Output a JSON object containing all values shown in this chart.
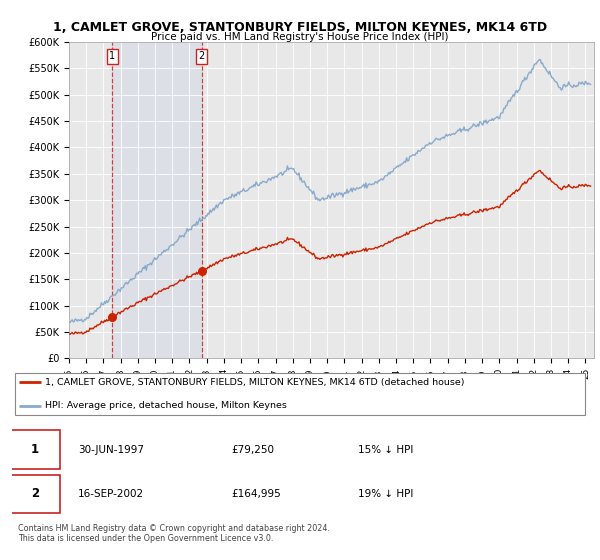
{
  "title_line1": "1, CAMLET GROVE, STANTONBURY FIELDS, MILTON KEYNES, MK14 6TD",
  "title_line2": "Price paid vs. HM Land Registry's House Price Index (HPI)",
  "ylabel_ticks": [
    "£0",
    "£50K",
    "£100K",
    "£150K",
    "£200K",
    "£250K",
    "£300K",
    "£350K",
    "£400K",
    "£450K",
    "£500K",
    "£550K",
    "£600K"
  ],
  "ytick_values": [
    0,
    50000,
    100000,
    150000,
    200000,
    250000,
    300000,
    350000,
    400000,
    450000,
    500000,
    550000,
    600000
  ],
  "sale1_date": 1997.5,
  "sale1_price": 79250,
  "sale1_label": "1",
  "sale2_date": 2002.71,
  "sale2_price": 164995,
  "sale2_label": "2",
  "hpi_line_color": "#88aacc",
  "price_line_color": "#cc2200",
  "sale_dot_color": "#cc2200",
  "plot_bg_color": "#e8e8e8",
  "grid_color": "#ffffff",
  "legend_label1": "1, CAMLET GROVE, STANTONBURY FIELDS, MILTON KEYNES, MK14 6TD (detached house)",
  "legend_label2": "HPI: Average price, detached house, Milton Keynes",
  "table_row1": [
    "1",
    "30-JUN-1997",
    "£79,250",
    "15% ↓ HPI"
  ],
  "table_row2": [
    "2",
    "16-SEP-2002",
    "£164,995",
    "19% ↓ HPI"
  ],
  "footnote": "Contains HM Land Registry data © Crown copyright and database right 2024.\nThis data is licensed under the Open Government Licence v3.0.",
  "xmin": 1995.0,
  "xmax": 2025.5,
  "ymin": 0,
  "ymax": 600000
}
